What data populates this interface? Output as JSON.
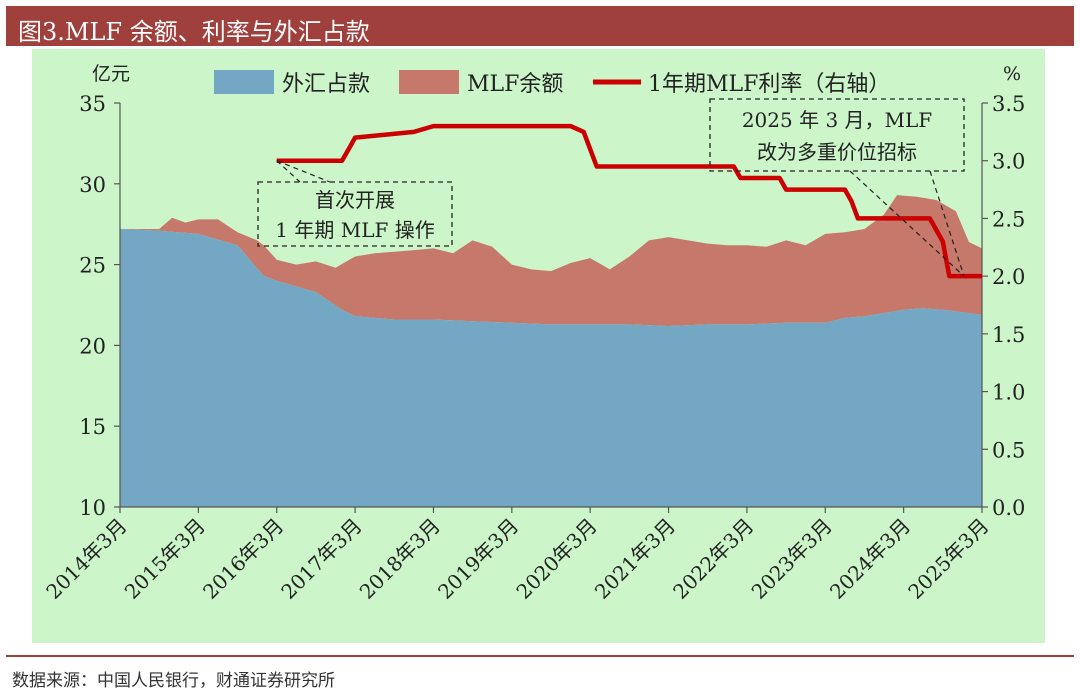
{
  "header": {
    "title": "图3.MLF 余额、利率与外汇占款"
  },
  "footer": {
    "source": "数据来源：中国人民银行，财通证券研究所"
  },
  "colors": {
    "title_bar": "#a0403d",
    "panel": "#ccf5c9",
    "fx": "#74a7c3",
    "mlf_balance": "#c6786a",
    "mlf_rate": "#cc0000"
  },
  "chart_data": {
    "type": "area",
    "x_tick_labels": [
      "2014年3月",
      "2015年3月",
      "2016年3月",
      "2017年3月",
      "2018年3月",
      "2019年3月",
      "2020年3月",
      "2021年3月",
      "2022年3月",
      "2023年3月",
      "2024年3月",
      "2025年3月"
    ],
    "x_range": [
      "2014-03",
      "2025-03"
    ],
    "left_axis": {
      "unit_label": "亿元",
      "ylim": [
        10,
        35
      ],
      "ticks": [
        10,
        15,
        20,
        25,
        30,
        35
      ]
    },
    "right_axis": {
      "unit_label": "%",
      "ylim": [
        0,
        3.5
      ],
      "ticks": [
        "0.0",
        "0.5",
        "1.0",
        "1.5",
        "2.0",
        "2.5",
        "3.0",
        "3.5"
      ]
    },
    "legend": {
      "position": "top",
      "items": [
        {
          "label": "外汇占款",
          "kind": "area"
        },
        {
          "label": "MLF余额",
          "kind": "area"
        },
        {
          "label": "1年期MLF利率（右轴）",
          "kind": "line"
        }
      ]
    },
    "series": [
      {
        "name": "外汇占款",
        "axis": "left",
        "kind": "stacked-area",
        "points": [
          [
            "2014-03",
            27.2
          ],
          [
            "2014-09",
            27.1
          ],
          [
            "2015-03",
            26.9
          ],
          [
            "2015-09",
            26.2
          ],
          [
            "2016-01",
            24.3
          ],
          [
            "2016-03",
            24.0
          ],
          [
            "2016-09",
            23.3
          ],
          [
            "2017-01",
            22.2
          ],
          [
            "2017-03",
            21.8
          ],
          [
            "2017-09",
            21.6
          ],
          [
            "2018-03",
            21.6
          ],
          [
            "2018-09",
            21.5
          ],
          [
            "2019-03",
            21.4
          ],
          [
            "2019-09",
            21.3
          ],
          [
            "2020-03",
            21.3
          ],
          [
            "2020-09",
            21.3
          ],
          [
            "2021-03",
            21.2
          ],
          [
            "2021-09",
            21.3
          ],
          [
            "2022-03",
            21.3
          ],
          [
            "2022-09",
            21.4
          ],
          [
            "2023-03",
            21.4
          ],
          [
            "2023-06",
            21.7
          ],
          [
            "2023-09",
            21.8
          ],
          [
            "2024-03",
            22.2
          ],
          [
            "2024-06",
            22.3
          ],
          [
            "2024-09",
            22.2
          ],
          [
            "2025-03",
            21.9
          ]
        ]
      },
      {
        "name": "MLF余额",
        "axis": "left",
        "kind": "stacked-area",
        "note_total_level": "top of stack",
        "points": [
          [
            "2014-03",
            27.2
          ],
          [
            "2014-09",
            27.2
          ],
          [
            "2014-11",
            27.9
          ],
          [
            "2015-01",
            27.6
          ],
          [
            "2015-03",
            27.8
          ],
          [
            "2015-06",
            27.8
          ],
          [
            "2015-09",
            27.0
          ],
          [
            "2015-12",
            26.5
          ],
          [
            "2016-01",
            26.2
          ],
          [
            "2016-03",
            25.3
          ],
          [
            "2016-06",
            25.0
          ],
          [
            "2016-09",
            25.2
          ],
          [
            "2016-12",
            24.8
          ],
          [
            "2017-03",
            25.5
          ],
          [
            "2017-06",
            25.7
          ],
          [
            "2017-09",
            25.8
          ],
          [
            "2017-12",
            25.9
          ],
          [
            "2018-03",
            26.0
          ],
          [
            "2018-06",
            25.7
          ],
          [
            "2018-09",
            26.5
          ],
          [
            "2018-12",
            26.1
          ],
          [
            "2019-03",
            25.0
          ],
          [
            "2019-06",
            24.7
          ],
          [
            "2019-09",
            24.6
          ],
          [
            "2019-12",
            25.1
          ],
          [
            "2020-03",
            25.4
          ],
          [
            "2020-06",
            24.7
          ],
          [
            "2020-09",
            25.5
          ],
          [
            "2020-12",
            26.5
          ],
          [
            "2021-03",
            26.7
          ],
          [
            "2021-06",
            26.5
          ],
          [
            "2021-09",
            26.3
          ],
          [
            "2021-12",
            26.2
          ],
          [
            "2022-03",
            26.2
          ],
          [
            "2022-06",
            26.1
          ],
          [
            "2022-09",
            26.5
          ],
          [
            "2022-12",
            26.2
          ],
          [
            "2023-03",
            26.9
          ],
          [
            "2023-06",
            27.0
          ],
          [
            "2023-09",
            27.2
          ],
          [
            "2023-12",
            28.1
          ],
          [
            "2024-02",
            29.3
          ],
          [
            "2024-05",
            29.2
          ],
          [
            "2024-08",
            29.0
          ],
          [
            "2024-11",
            28.3
          ],
          [
            "2025-01",
            26.4
          ],
          [
            "2025-03",
            26.0
          ]
        ]
      },
      {
        "name": "1年期MLF利率（右轴）",
        "axis": "right",
        "kind": "line",
        "points": [
          [
            "2016-03",
            3.0
          ],
          [
            "2017-01",
            3.0
          ],
          [
            "2017-02",
            3.1
          ],
          [
            "2017-03",
            3.2
          ],
          [
            "2017-12",
            3.25
          ],
          [
            "2018-03",
            3.3
          ],
          [
            "2019-12",
            3.3
          ],
          [
            "2020-02",
            3.25
          ],
          [
            "2020-04",
            2.95
          ],
          [
            "2022-01",
            2.95
          ],
          [
            "2022-02",
            2.85
          ],
          [
            "2022-08",
            2.85
          ],
          [
            "2022-09",
            2.75
          ],
          [
            "2023-06",
            2.75
          ],
          [
            "2023-07",
            2.65
          ],
          [
            "2023-08",
            2.5
          ],
          [
            "2024-07",
            2.5
          ],
          [
            "2024-09",
            2.3
          ],
          [
            "2024-10",
            2.0
          ],
          [
            "2025-03",
            2.0
          ]
        ]
      }
    ],
    "annotations": [
      {
        "text_lines": [
          "首次开展",
          "1 年期 MLF 操作"
        ],
        "points_to": [
          "2016-03",
          3.0
        ]
      },
      {
        "text_lines": [
          "2025 年 3 月，MLF",
          "改为多重价位招标"
        ],
        "points_to": [
          "2025-03",
          2.0
        ]
      }
    ]
  }
}
